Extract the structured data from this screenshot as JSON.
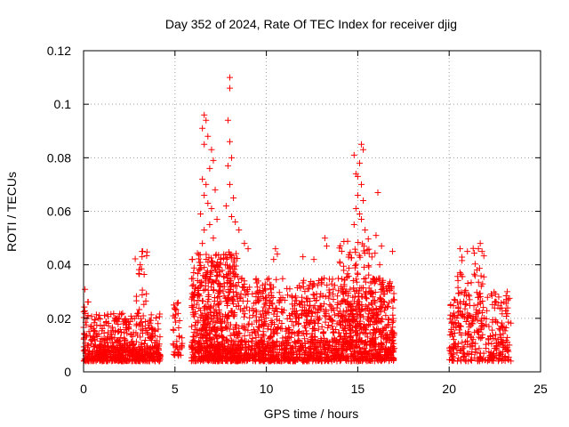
{
  "chart_data": {
    "type": "scatter",
    "title": "Day 352 of 2024, Rate Of TEC Index for receiver djig",
    "xlabel": "GPS time / hours",
    "ylabel": "ROTI / TECUs",
    "xlim": [
      0,
      25
    ],
    "ylim": [
      0,
      0.12
    ],
    "grid": true,
    "marker": "+",
    "x_ticks": [
      {
        "value": 0,
        "label": "0"
      },
      {
        "value": 5,
        "label": "5"
      },
      {
        "value": 10,
        "label": "10"
      },
      {
        "value": 15,
        "label": "15"
      },
      {
        "value": 20,
        "label": "20"
      },
      {
        "value": 25,
        "label": "25"
      }
    ],
    "y_ticks": [
      {
        "value": 0,
        "label": "0"
      },
      {
        "value": 0.02,
        "label": "0.02"
      },
      {
        "value": 0.04,
        "label": "0.04"
      },
      {
        "value": 0.06,
        "label": "0.06"
      },
      {
        "value": 0.08,
        "label": "0.08"
      },
      {
        "value": 0.1,
        "label": "0.1"
      },
      {
        "value": 0.12,
        "label": "0.12"
      }
    ],
    "series": [
      {
        "name": "ROTI",
        "color": "#ff0000",
        "clusters": [
          {
            "x_range": [
              0.0,
              4.2
            ],
            "y_range": [
              0.004,
              0.022
            ],
            "count": 420
          },
          {
            "x_range": [
              0.0,
              0.3
            ],
            "y_range": [
              0.015,
              0.031
            ],
            "count": 12
          },
          {
            "x_range": [
              0.0,
              4.2
            ],
            "y_range": [
              0.004,
              0.01
            ],
            "count": 200
          },
          {
            "x_range": [
              2.8,
              3.5
            ],
            "y_range": [
              0.018,
              0.046
            ],
            "count": 20
          },
          {
            "x_range": [
              4.9,
              5.4
            ],
            "y_range": [
              0.006,
              0.027
            ],
            "count": 40
          },
          {
            "x_range": [
              5.9,
              8.5
            ],
            "y_range": [
              0.004,
              0.045
            ],
            "count": 600
          },
          {
            "x_range": [
              8.5,
              17.0
            ],
            "y_range": [
              0.004,
              0.035
            ],
            "count": 1100
          },
          {
            "x_range": [
              5.9,
              17.0
            ],
            "y_range": [
              0.004,
              0.012
            ],
            "count": 400
          },
          {
            "x_range": [
              14.0,
              16.0
            ],
            "y_range": [
              0.01,
              0.05
            ],
            "count": 160
          },
          {
            "x_range": [
              15.9,
              17.0
            ],
            "y_range": [
              0.005,
              0.035
            ],
            "count": 60
          },
          {
            "x_range": [
              20.0,
              23.4
            ],
            "y_range": [
              0.004,
              0.03
            ],
            "count": 320
          },
          {
            "x_range": [
              20.4,
              22.0
            ],
            "y_range": [
              0.02,
              0.047
            ],
            "count": 50
          }
        ],
        "points": [
          {
            "x": 6.6,
            "y": 0.096
          },
          {
            "x": 6.7,
            "y": 0.094
          },
          {
            "x": 6.5,
            "y": 0.091
          },
          {
            "x": 6.8,
            "y": 0.088
          },
          {
            "x": 6.6,
            "y": 0.085
          },
          {
            "x": 7.0,
            "y": 0.083
          },
          {
            "x": 7.1,
            "y": 0.079
          },
          {
            "x": 6.9,
            "y": 0.076
          },
          {
            "x": 6.5,
            "y": 0.072
          },
          {
            "x": 6.7,
            "y": 0.07
          },
          {
            "x": 7.2,
            "y": 0.068
          },
          {
            "x": 6.6,
            "y": 0.066
          },
          {
            "x": 6.8,
            "y": 0.063
          },
          {
            "x": 7.0,
            "y": 0.061
          },
          {
            "x": 6.4,
            "y": 0.059
          },
          {
            "x": 7.3,
            "y": 0.057
          },
          {
            "x": 6.9,
            "y": 0.055
          },
          {
            "x": 6.6,
            "y": 0.053
          },
          {
            "x": 7.1,
            "y": 0.05
          },
          {
            "x": 6.5,
            "y": 0.048
          },
          {
            "x": 8.0,
            "y": 0.11
          },
          {
            "x": 8.0,
            "y": 0.106
          },
          {
            "x": 7.9,
            "y": 0.094
          },
          {
            "x": 8.0,
            "y": 0.086
          },
          {
            "x": 8.1,
            "y": 0.08
          },
          {
            "x": 7.9,
            "y": 0.077
          },
          {
            "x": 8.0,
            "y": 0.07
          },
          {
            "x": 8.2,
            "y": 0.065
          },
          {
            "x": 7.8,
            "y": 0.062
          },
          {
            "x": 8.1,
            "y": 0.058
          },
          {
            "x": 8.3,
            "y": 0.056
          },
          {
            "x": 8.5,
            "y": 0.053
          },
          {
            "x": 8.8,
            "y": 0.048
          },
          {
            "x": 9.0,
            "y": 0.046
          },
          {
            "x": 10.5,
            "y": 0.046
          },
          {
            "x": 10.6,
            "y": 0.044
          },
          {
            "x": 10.4,
            "y": 0.042
          },
          {
            "x": 12.0,
            "y": 0.043
          },
          {
            "x": 12.6,
            "y": 0.042
          },
          {
            "x": 13.2,
            "y": 0.05
          },
          {
            "x": 13.3,
            "y": 0.047
          },
          {
            "x": 14.8,
            "y": 0.081
          },
          {
            "x": 15.2,
            "y": 0.085
          },
          {
            "x": 15.3,
            "y": 0.083
          },
          {
            "x": 15.1,
            "y": 0.078
          },
          {
            "x": 14.9,
            "y": 0.074
          },
          {
            "x": 15.0,
            "y": 0.073
          },
          {
            "x": 15.2,
            "y": 0.07
          },
          {
            "x": 15.0,
            "y": 0.066
          },
          {
            "x": 15.3,
            "y": 0.064
          },
          {
            "x": 14.9,
            "y": 0.061
          },
          {
            "x": 15.1,
            "y": 0.059
          },
          {
            "x": 15.2,
            "y": 0.057
          },
          {
            "x": 14.8,
            "y": 0.055
          },
          {
            "x": 15.4,
            "y": 0.053
          },
          {
            "x": 16.1,
            "y": 0.067
          },
          {
            "x": 16.0,
            "y": 0.051
          },
          {
            "x": 16.3,
            "y": 0.047
          },
          {
            "x": 16.9,
            "y": 0.045
          },
          {
            "x": 16.2,
            "y": 0.04
          },
          {
            "x": 3.2,
            "y": 0.045
          },
          {
            "x": 3.2,
            "y": 0.043
          },
          {
            "x": 3.1,
            "y": 0.04
          },
          {
            "x": 21.7,
            "y": 0.048
          },
          {
            "x": 21.6,
            "y": 0.046
          },
          {
            "x": 21.8,
            "y": 0.045
          },
          {
            "x": 20.6,
            "y": 0.046
          },
          {
            "x": 21.0,
            "y": 0.045
          }
        ]
      }
    ]
  }
}
